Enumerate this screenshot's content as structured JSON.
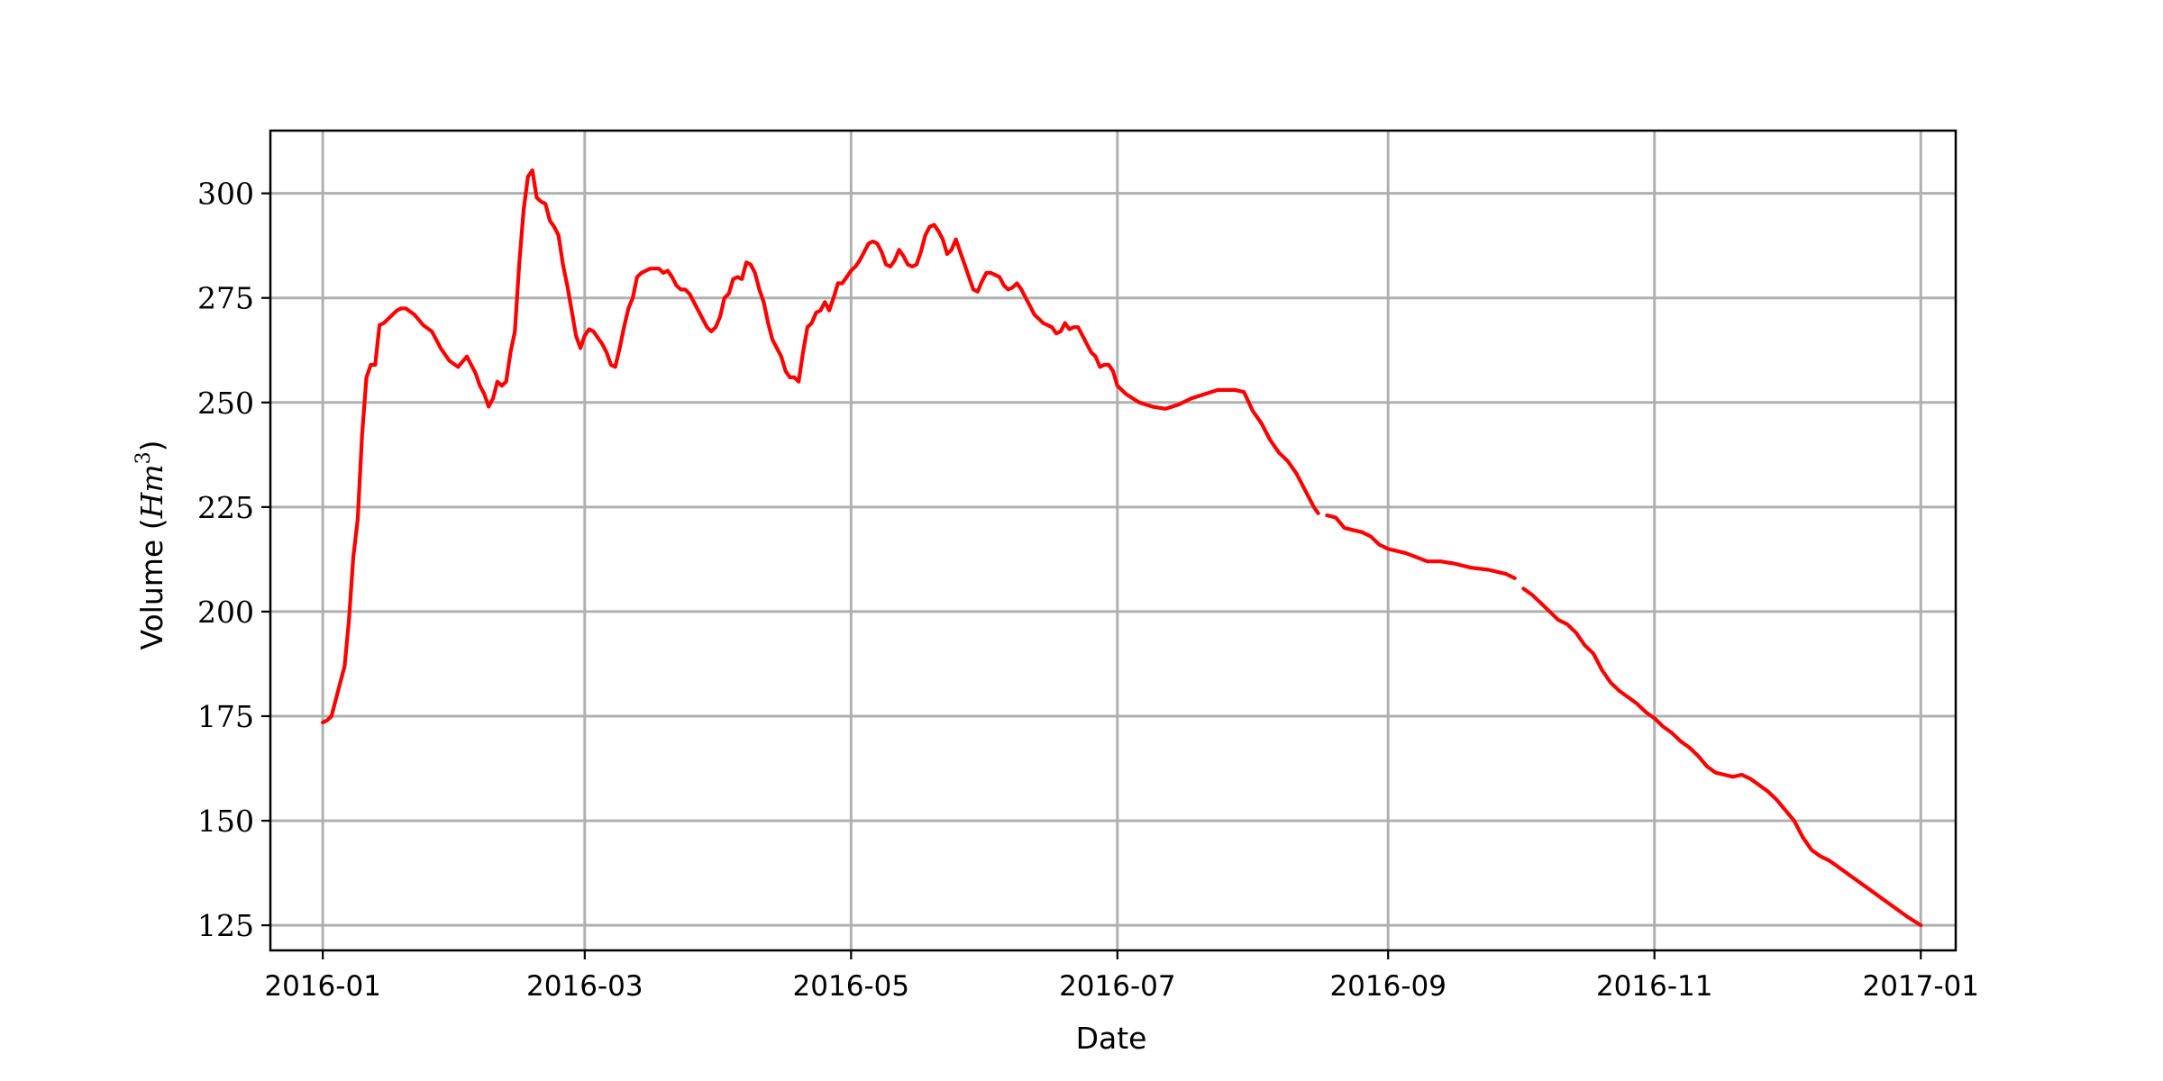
{
  "chart_data": {
    "type": "line",
    "title": "",
    "xlabel": "Date",
    "ylabel": "Volume ($Hm^3$)",
    "ylabel_parts": {
      "prefix": "Volume (",
      "math_base": "Hm",
      "math_exp": "3",
      "suffix": ")"
    },
    "x_axis_type": "date",
    "xlim": [
      "2015-12-20",
      "2017-01-09"
    ],
    "ylim": [
      119,
      315
    ],
    "x_ticks": [
      "2016-01",
      "2016-03",
      "2016-05",
      "2016-07",
      "2016-09",
      "2016-11",
      "2017-01"
    ],
    "x_tick_dates": [
      "2016-01-01",
      "2016-03-01",
      "2016-05-01",
      "2016-07-01",
      "2016-09-01",
      "2016-11-01",
      "2017-01-01"
    ],
    "y_ticks": [
      125,
      150,
      175,
      200,
      225,
      250,
      275,
      300
    ],
    "grid": true,
    "legend": "none",
    "series": [
      {
        "color": "#ff0000",
        "segments": [
          {
            "x": [
              "2016-01-01",
              "2016-01-02",
              "2016-01-03",
              "2016-01-05",
              "2016-01-06",
              "2016-01-07",
              "2016-01-08",
              "2016-01-09",
              "2016-01-10",
              "2016-01-11",
              "2016-01-12",
              "2016-01-13",
              "2016-01-14",
              "2016-01-15",
              "2016-01-16",
              "2016-01-18",
              "2016-01-19",
              "2016-01-20",
              "2016-01-22",
              "2016-01-24",
              "2016-01-26",
              "2016-01-28",
              "2016-01-30",
              "2016-02-01",
              "2016-02-03",
              "2016-02-05",
              "2016-02-06",
              "2016-02-07",
              "2016-02-08",
              "2016-02-09",
              "2016-02-10",
              "2016-02-11",
              "2016-02-12",
              "2016-02-13",
              "2016-02-14",
              "2016-02-15",
              "2016-02-16",
              "2016-02-17",
              "2016-02-18",
              "2016-02-19",
              "2016-02-20",
              "2016-02-21",
              "2016-02-22",
              "2016-02-23",
              "2016-02-24",
              "2016-02-25",
              "2016-02-26",
              "2016-02-27",
              "2016-02-28",
              "2016-02-29",
              "2016-03-01",
              "2016-03-02",
              "2016-03-03",
              "2016-03-05",
              "2016-03-06",
              "2016-03-07",
              "2016-03-08",
              "2016-03-09",
              "2016-03-10",
              "2016-03-11",
              "2016-03-12",
              "2016-03-13",
              "2016-03-14",
              "2016-03-15",
              "2016-03-16",
              "2016-03-17",
              "2016-03-18",
              "2016-03-19",
              "2016-03-20",
              "2016-03-21",
              "2016-03-22",
              "2016-03-23",
              "2016-03-24",
              "2016-03-25",
              "2016-03-26",
              "2016-03-27",
              "2016-03-28",
              "2016-03-29",
              "2016-03-30",
              "2016-03-31",
              "2016-04-01",
              "2016-04-02",
              "2016-04-03",
              "2016-04-04",
              "2016-04-05",
              "2016-04-06",
              "2016-04-07",
              "2016-04-08",
              "2016-04-09",
              "2016-04-10",
              "2016-04-11",
              "2016-04-12",
              "2016-04-13",
              "2016-04-14",
              "2016-04-15",
              "2016-04-16",
              "2016-04-17",
              "2016-04-18",
              "2016-04-19",
              "2016-04-20",
              "2016-04-21",
              "2016-04-22",
              "2016-04-23",
              "2016-04-24",
              "2016-04-25",
              "2016-04-26",
              "2016-04-27",
              "2016-04-28",
              "2016-04-29",
              "2016-04-30",
              "2016-05-01",
              "2016-05-02",
              "2016-05-03",
              "2016-05-04",
              "2016-05-05",
              "2016-05-06",
              "2016-05-07",
              "2016-05-08",
              "2016-05-09",
              "2016-05-10",
              "2016-05-11",
              "2016-05-12",
              "2016-05-13",
              "2016-05-14",
              "2016-05-15",
              "2016-05-16",
              "2016-05-17",
              "2016-05-18",
              "2016-05-19",
              "2016-05-20",
              "2016-05-21",
              "2016-05-22",
              "2016-05-23",
              "2016-05-24",
              "2016-05-25",
              "2016-05-26",
              "2016-05-27",
              "2016-05-28",
              "2016-05-29",
              "2016-05-30",
              "2016-05-31",
              "2016-06-01",
              "2016-06-02",
              "2016-06-03",
              "2016-06-04",
              "2016-06-05",
              "2016-06-06",
              "2016-06-07",
              "2016-06-08",
              "2016-06-09",
              "2016-06-10",
              "2016-06-11",
              "2016-06-12",
              "2016-06-13",
              "2016-06-14",
              "2016-06-15",
              "2016-06-16",
              "2016-06-17",
              "2016-06-18",
              "2016-06-19",
              "2016-06-20",
              "2016-06-21",
              "2016-06-22",
              "2016-06-23",
              "2016-06-24",
              "2016-06-25",
              "2016-06-26",
              "2016-06-27",
              "2016-06-28",
              "2016-06-29",
              "2016-06-30",
              "2016-07-01",
              "2016-07-03",
              "2016-07-06",
              "2016-07-09",
              "2016-07-12",
              "2016-07-15",
              "2016-07-18",
              "2016-07-21",
              "2016-07-24",
              "2016-07-26",
              "2016-07-28",
              "2016-07-30",
              "2016-08-01",
              "2016-08-03",
              "2016-08-05",
              "2016-08-07",
              "2016-08-09",
              "2016-08-11",
              "2016-08-13",
              "2016-08-15",
              "2016-08-16"
            ],
            "y": [
              173.5,
              174,
              175,
              183,
              187,
              198,
              213,
              222,
              242,
              256,
              259,
              259,
              268.5,
              269,
              270,
              272,
              272.5,
              272.5,
              271,
              268.5,
              267,
              263,
              260,
              258.5,
              261,
              257,
              254,
              252,
              249,
              251,
              255,
              254,
              255,
              262,
              267,
              283,
              296,
              304,
              305.5,
              299,
              298,
              297.5,
              293.5,
              292,
              290,
              283,
              278,
              272,
              266,
              263,
              266,
              267.5,
              267,
              264,
              262,
              259,
              258.5,
              263,
              268,
              272.5,
              275,
              280,
              281,
              281.5,
              282,
              282,
              282,
              281,
              281.5,
              280,
              278,
              277,
              277,
              276,
              274,
              272,
              270,
              268,
              267,
              268,
              270.5,
              275,
              276,
              279.5,
              280,
              279.5,
              283.5,
              283,
              281,
              277,
              274,
              269,
              265,
              263,
              261,
              257.5,
              256,
              256,
              255,
              262,
              268,
              269,
              271.5,
              272,
              274,
              272,
              275,
              278.5,
              278.5,
              280,
              281.5,
              282.5,
              284,
              286,
              288,
              288.5,
              288,
              286,
              283,
              282.5,
              284,
              286.5,
              285,
              283,
              282.5,
              283,
              286,
              290,
              292,
              292.5,
              291,
              289,
              285.5,
              286.5,
              289,
              286,
              283,
              280,
              277,
              276.5,
              279,
              281,
              281,
              280.5,
              280,
              278,
              277,
              277.5,
              278.5,
              277,
              275,
              273,
              271,
              270,
              269,
              268.5,
              268,
              266.5,
              267,
              269,
              267.5,
              268,
              268,
              266,
              264,
              262,
              261,
              258.5,
              259,
              259,
              257.5,
              254,
              252,
              250,
              249,
              248.5,
              249.5,
              251,
              252,
              253,
              253,
              253,
              252.5,
              248,
              245,
              241,
              238,
              236,
              233,
              229,
              225,
              223.5
            ]
          },
          {
            "x": [
              "2016-08-18",
              "2016-08-20",
              "2016-08-22",
              "2016-08-24",
              "2016-08-26",
              "2016-08-28",
              "2016-08-30",
              "2016-09-01",
              "2016-09-05",
              "2016-09-10",
              "2016-09-13",
              "2016-09-16",
              "2016-09-20",
              "2016-09-24",
              "2016-09-28",
              "2016-09-30"
            ],
            "y": [
              223,
              222.5,
              220,
              219.5,
              219,
              218,
              216,
              215,
              214,
              212,
              212,
              211.5,
              210.5,
              210,
              209,
              208
            ]
          },
          {
            "x": [
              "2016-10-02",
              "2016-10-04",
              "2016-10-06",
              "2016-10-08",
              "2016-10-10",
              "2016-10-12",
              "2016-10-14",
              "2016-10-16",
              "2016-10-18",
              "2016-10-20",
              "2016-10-22",
              "2016-10-24",
              "2016-10-26",
              "2016-10-28",
              "2016-10-30",
              "2016-11-01",
              "2016-11-03",
              "2016-11-05",
              "2016-11-07",
              "2016-11-09",
              "2016-11-11",
              "2016-11-13",
              "2016-11-15",
              "2016-11-17",
              "2016-11-19",
              "2016-11-21",
              "2016-11-23",
              "2016-11-25",
              "2016-11-27",
              "2016-11-29",
              "2016-12-01",
              "2016-12-03",
              "2016-12-05",
              "2016-12-07",
              "2016-12-09",
              "2016-12-11",
              "2016-12-13",
              "2016-12-15",
              "2016-12-17",
              "2016-12-19",
              "2016-12-21",
              "2016-12-23",
              "2016-12-25",
              "2016-12-27",
              "2016-12-29",
              "2017-01-01"
            ],
            "y": [
              205.5,
              204,
              202,
              200,
              198,
              197,
              195,
              192,
              190,
              186,
              183,
              181,
              179.5,
              178,
              176,
              174.5,
              172.5,
              171,
              169,
              167.5,
              165.5,
              163,
              161.5,
              161,
              160.5,
              161,
              160,
              158.5,
              157,
              155,
              152.5,
              150,
              146,
              143,
              141.5,
              140.5,
              139,
              137.5,
              136,
              134.5,
              133,
              131.5,
              130,
              128.5,
              127,
              125
            ]
          }
        ]
      }
    ]
  }
}
